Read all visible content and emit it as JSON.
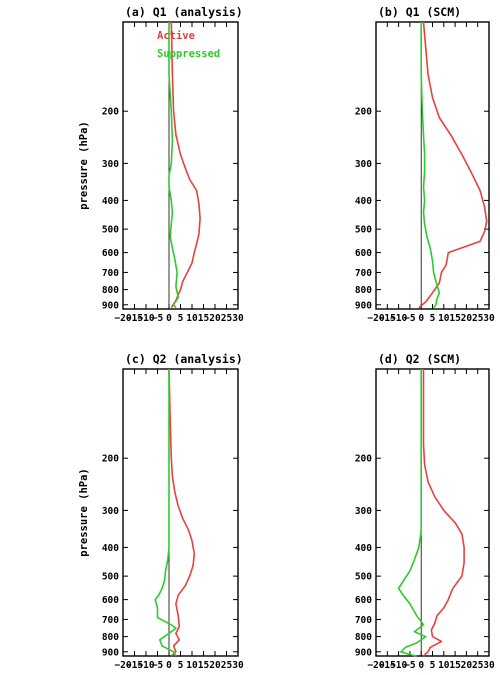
{
  "colors": {
    "active": "#e8413c",
    "suppressed": "#2bcc2b"
  },
  "chart_data": [
    {
      "type": "line",
      "title": "(a) Q1 (analysis)",
      "ylabel": "pressure (hPa)",
      "xlim": [
        -20,
        30
      ],
      "ylim": [
        930,
        100
      ],
      "y_log": true,
      "xticks": [
        -20,
        -15,
        -10,
        -5,
        0,
        5,
        10,
        15,
        20,
        25,
        30
      ],
      "yticks": [
        200,
        300,
        400,
        500,
        600,
        700,
        800,
        900
      ],
      "legend": {
        "placement": "top-right",
        "entries": [
          "Active",
          "Suppressed"
        ]
      },
      "series": [
        {
          "name": "Active",
          "color": "#e8413c",
          "x": [
            1,
            1.5,
            2,
            3,
            5,
            7,
            9,
            12,
            13,
            13.5,
            13,
            12,
            11,
            10,
            8,
            6,
            5,
            3,
            1
          ],
          "y": [
            100,
            150,
            200,
            240,
            280,
            310,
            340,
            370,
            410,
            460,
            520,
            560,
            600,
            650,
            700,
            750,
            800,
            870,
            920
          ]
        },
        {
          "name": "Suppressed",
          "color": "#2bcc2b",
          "x": [
            0,
            0,
            1,
            1.5,
            1,
            0,
            0,
            1,
            1.5,
            1,
            0.5,
            1.5,
            2.5,
            3.5,
            3,
            4,
            2,
            3
          ],
          "y": [
            100,
            150,
            200,
            250,
            300,
            330,
            360,
            400,
            440,
            480,
            530,
            580,
            630,
            700,
            780,
            850,
            900,
            920
          ]
        }
      ]
    },
    {
      "type": "line",
      "title": "(b) Q1 (SCM)",
      "xlim": [
        -20,
        30
      ],
      "ylim": [
        930,
        100
      ],
      "y_log": true,
      "xticks": [
        -20,
        -15,
        -10,
        -5,
        0,
        5,
        10,
        15,
        20,
        25,
        30
      ],
      "yticks": [
        200,
        300,
        400,
        500,
        600,
        700,
        800,
        900
      ],
      "series": [
        {
          "name": "Active",
          "color": "#e8413c",
          "x": [
            1,
            3,
            5,
            8,
            13,
            18,
            22,
            26,
            28,
            29,
            28,
            26,
            12,
            11,
            9,
            8,
            5,
            2,
            -1
          ],
          "y": [
            100,
            150,
            180,
            210,
            240,
            280,
            320,
            370,
            420,
            470,
            510,
            550,
            600,
            660,
            700,
            760,
            820,
            880,
            920
          ]
        },
        {
          "name": "Suppressed",
          "color": "#2bcc2b",
          "x": [
            0,
            0,
            0.5,
            1,
            1.5,
            1.5,
            1,
            1.5,
            1,
            1.5,
            2.5,
            4,
            5,
            5.5,
            6.5,
            8,
            7,
            6.5,
            5.5
          ],
          "y": [
            100,
            150,
            200,
            240,
            280,
            320,
            360,
            400,
            440,
            480,
            530,
            580,
            640,
            700,
            750,
            820,
            860,
            900,
            920
          ]
        }
      ]
    },
    {
      "type": "line",
      "title": "(c) Q2 (analysis)",
      "ylabel": "pressure (hPa)",
      "xlim": [
        -20,
        30
      ],
      "ylim": [
        930,
        100
      ],
      "y_log": true,
      "xticks": [
        -20,
        -15,
        -10,
        -5,
        0,
        5,
        10,
        15,
        20,
        25,
        30
      ],
      "yticks": [
        200,
        300,
        400,
        500,
        600,
        700,
        800,
        900
      ],
      "series": [
        {
          "name": "Active",
          "color": "#e8413c",
          "x": [
            0,
            0.5,
            1,
            1.5,
            2.5,
            4,
            6,
            8.5,
            10,
            11,
            10.5,
            9,
            7,
            4,
            3,
            4,
            4.5,
            3,
            4.5,
            2,
            3,
            1
          ],
          "y": [
            100,
            150,
            200,
            230,
            260,
            290,
            320,
            350,
            380,
            420,
            460,
            500,
            540,
            580,
            620,
            680,
            740,
            780,
            820,
            860,
            900,
            930
          ]
        },
        {
          "name": "Suppressed",
          "color": "#2bcc2b",
          "x": [
            0,
            0,
            0,
            0,
            0,
            0,
            0,
            -0.5,
            -1.5,
            -2,
            -3,
            -4.5,
            -6,
            -5,
            -5,
            1,
            3,
            0,
            -4,
            -3,
            2,
            3
          ],
          "y": [
            100,
            150,
            200,
            250,
            300,
            350,
            400,
            440,
            480,
            520,
            550,
            580,
            600,
            640,
            690,
            730,
            750,
            780,
            820,
            860,
            900,
            930
          ]
        }
      ]
    },
    {
      "type": "line",
      "title": "(d) Q2 (SCM)",
      "xlim": [
        -20,
        30
      ],
      "ylim": [
        930,
        100
      ],
      "y_log": true,
      "xticks": [
        -20,
        -15,
        -10,
        -5,
        0,
        5,
        10,
        15,
        20,
        25,
        30
      ],
      "yticks": [
        200,
        300,
        400,
        500,
        600,
        700,
        800,
        900
      ],
      "series": [
        {
          "name": "Active",
          "color": "#e8413c",
          "x": [
            1,
            1,
            1,
            1.5,
            3,
            6,
            10,
            15,
            18,
            19,
            19,
            18,
            14,
            12,
            10,
            7,
            6,
            4.5,
            5,
            9,
            4,
            3,
            1
          ],
          "y": [
            100,
            140,
            180,
            210,
            240,
            270,
            300,
            330,
            360,
            400,
            450,
            500,
            550,
            600,
            640,
            680,
            720,
            760,
            800,
            830,
            870,
            900,
            930
          ]
        },
        {
          "name": "Suppressed",
          "color": "#2bcc2b",
          "x": [
            0,
            0,
            0,
            0,
            0,
            0,
            -1,
            -3,
            -5,
            -8,
            -10,
            -8,
            -5,
            -2,
            1,
            -3,
            2,
            -2,
            -7,
            -9,
            -5,
            -2
          ],
          "y": [
            100,
            150,
            200,
            250,
            300,
            350,
            400,
            440,
            480,
            520,
            550,
            580,
            620,
            680,
            730,
            770,
            800,
            840,
            870,
            900,
            920,
            930
          ]
        }
      ]
    }
  ]
}
